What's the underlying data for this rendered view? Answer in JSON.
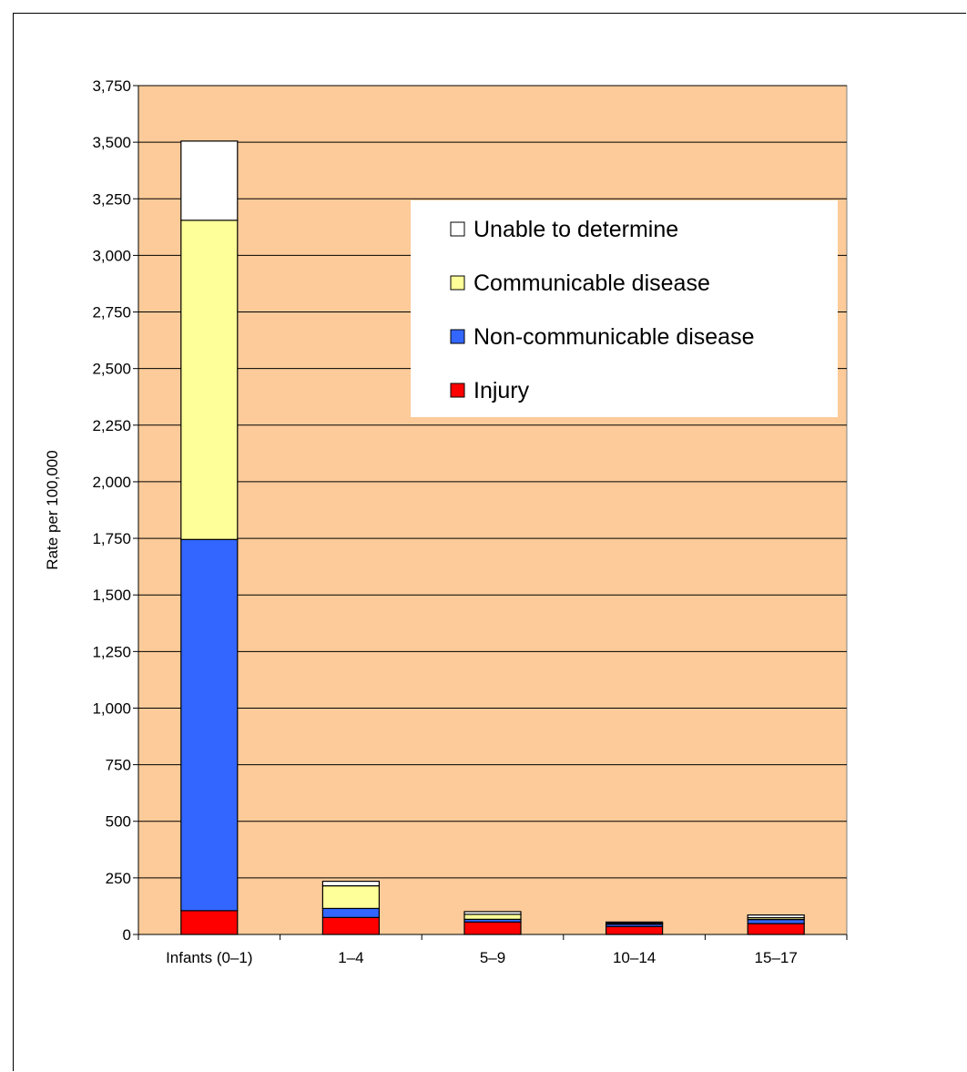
{
  "chart_data": {
    "type": "bar",
    "stacked": true,
    "categories": [
      "Infants (0–1)",
      "1–4",
      "5–9",
      "10–14",
      "15–17"
    ],
    "ylabel": "Rate per 100,000",
    "ylim": [
      0,
      3750
    ],
    "yticks": [
      0,
      250,
      500,
      750,
      1000,
      1250,
      1500,
      1750,
      2000,
      2250,
      2500,
      2750,
      3000,
      3250,
      3500,
      3750
    ],
    "ytick_labels": [
      "0",
      "250",
      "500",
      "750",
      "1,000",
      "1,250",
      "1,500",
      "1,750",
      "2,000",
      "2,250",
      "2,500",
      "2,750",
      "3,000",
      "3,250",
      "3,500",
      "3,750"
    ],
    "grid": true,
    "legend_position": "top-right",
    "plot_background": "#FCCB99",
    "series": [
      {
        "name": "Injury",
        "color": "#FF0000",
        "values": [
          105,
          75,
          55,
          35,
          48
        ]
      },
      {
        "name": "Non-communicable disease",
        "color": "#3366FF",
        "values": [
          1640,
          40,
          12,
          10,
          18
        ]
      },
      {
        "name": "Communicable disease",
        "color": "#FFFF99",
        "values": [
          1410,
          100,
          22,
          5,
          8
        ]
      },
      {
        "name": "Unable to determine",
        "color": "#FFFFFF",
        "values": [
          350,
          20,
          12,
          5,
          12
        ]
      }
    ],
    "legend_order": [
      "Unable to determine",
      "Communicable disease",
      "Non-communicable disease",
      "Injury"
    ]
  }
}
